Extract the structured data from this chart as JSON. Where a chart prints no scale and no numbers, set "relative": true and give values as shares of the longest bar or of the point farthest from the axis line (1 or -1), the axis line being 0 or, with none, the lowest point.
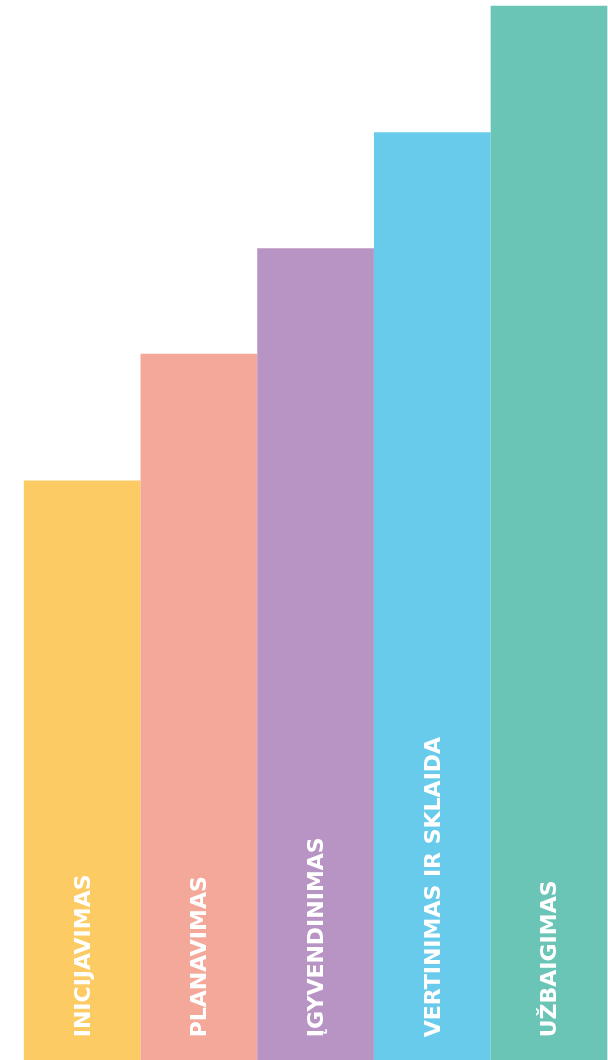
{
  "chart_data": {
    "type": "bar",
    "relative": true,
    "categories": [
      "INICIJAVIMAS",
      "PLANAVIMAS",
      "ĮGYVENDINIMAS",
      "VERTINIMAS IR SKLAIDA",
      "UŽBAIGIMAS"
    ],
    "values": [
      0.55,
      0.67,
      0.77,
      0.88,
      1.0
    ],
    "colors": [
      "#fccb64",
      "#f4a89a",
      "#b894c4",
      "#68cbeb",
      "#6ac5b6"
    ],
    "grid": false
  }
}
